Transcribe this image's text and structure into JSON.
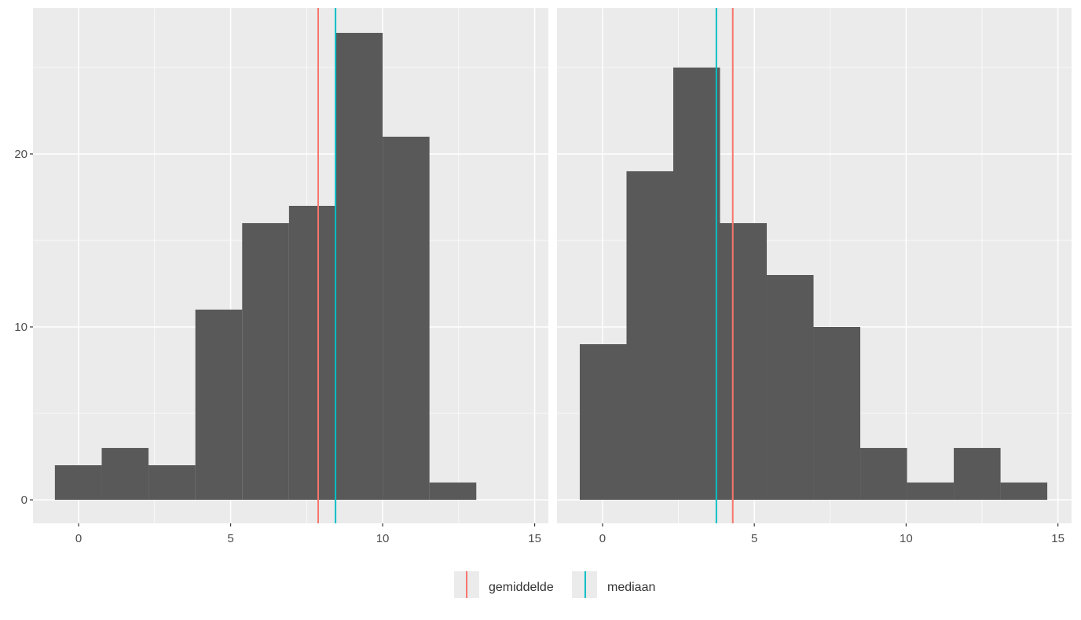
{
  "chart_data": [
    {
      "type": "bar",
      "subtype": "histogram",
      "bins": [
        [
          -0.78,
          0.76
        ],
        [
          0.76,
          2.3
        ],
        [
          2.3,
          3.84
        ],
        [
          3.84,
          5.38
        ],
        [
          5.38,
          6.92
        ],
        [
          6.92,
          8.46
        ],
        [
          8.46,
          10.0
        ],
        [
          10.0,
          11.54
        ],
        [
          11.54,
          13.08
        ]
      ],
      "values": [
        2,
        3,
        2,
        11,
        16,
        17,
        27,
        21,
        1
      ],
      "vlines": [
        {
          "name": "gemiddelde",
          "x": 7.88
        },
        {
          "name": "mediaan",
          "x": 8.45
        }
      ],
      "xlim": [
        -1.5,
        15.45
      ],
      "ylim": [
        -1.36,
        28.45
      ],
      "xticks": [
        "0",
        "5",
        "10",
        "15"
      ],
      "yticks": [
        "0",
        "10",
        "20"
      ],
      "grid": true
    },
    {
      "type": "bar",
      "subtype": "histogram",
      "bins": [
        [
          -0.75,
          0.79
        ],
        [
          0.79,
          2.33
        ],
        [
          2.33,
          3.87
        ],
        [
          3.87,
          5.41
        ],
        [
          5.41,
          6.95
        ],
        [
          6.95,
          8.49
        ],
        [
          8.49,
          10.03
        ],
        [
          10.03,
          11.57
        ],
        [
          11.57,
          13.11
        ],
        [
          13.11,
          14.65
        ]
      ],
      "values": [
        9,
        19,
        25,
        16,
        13,
        10,
        3,
        1,
        3,
        1
      ],
      "vlines": [
        {
          "name": "gemiddelde",
          "x": 4.29
        },
        {
          "name": "mediaan",
          "x": 3.75
        }
      ],
      "xlim": [
        -1.5,
        15.45
      ],
      "ylim": [
        -1.36,
        28.45
      ],
      "xticks": [
        "0",
        "5",
        "10",
        "15"
      ],
      "yticks": [],
      "grid": true
    }
  ],
  "legend": {
    "position": "bottom",
    "items": [
      {
        "label": "gemiddelde",
        "color": "#F8766D"
      },
      {
        "label": "mediaan",
        "color": "#00BFC4"
      }
    ]
  },
  "colors": {
    "panel": "#EBEBEB",
    "bar": "#595959",
    "grid": "#FFFFFF"
  }
}
